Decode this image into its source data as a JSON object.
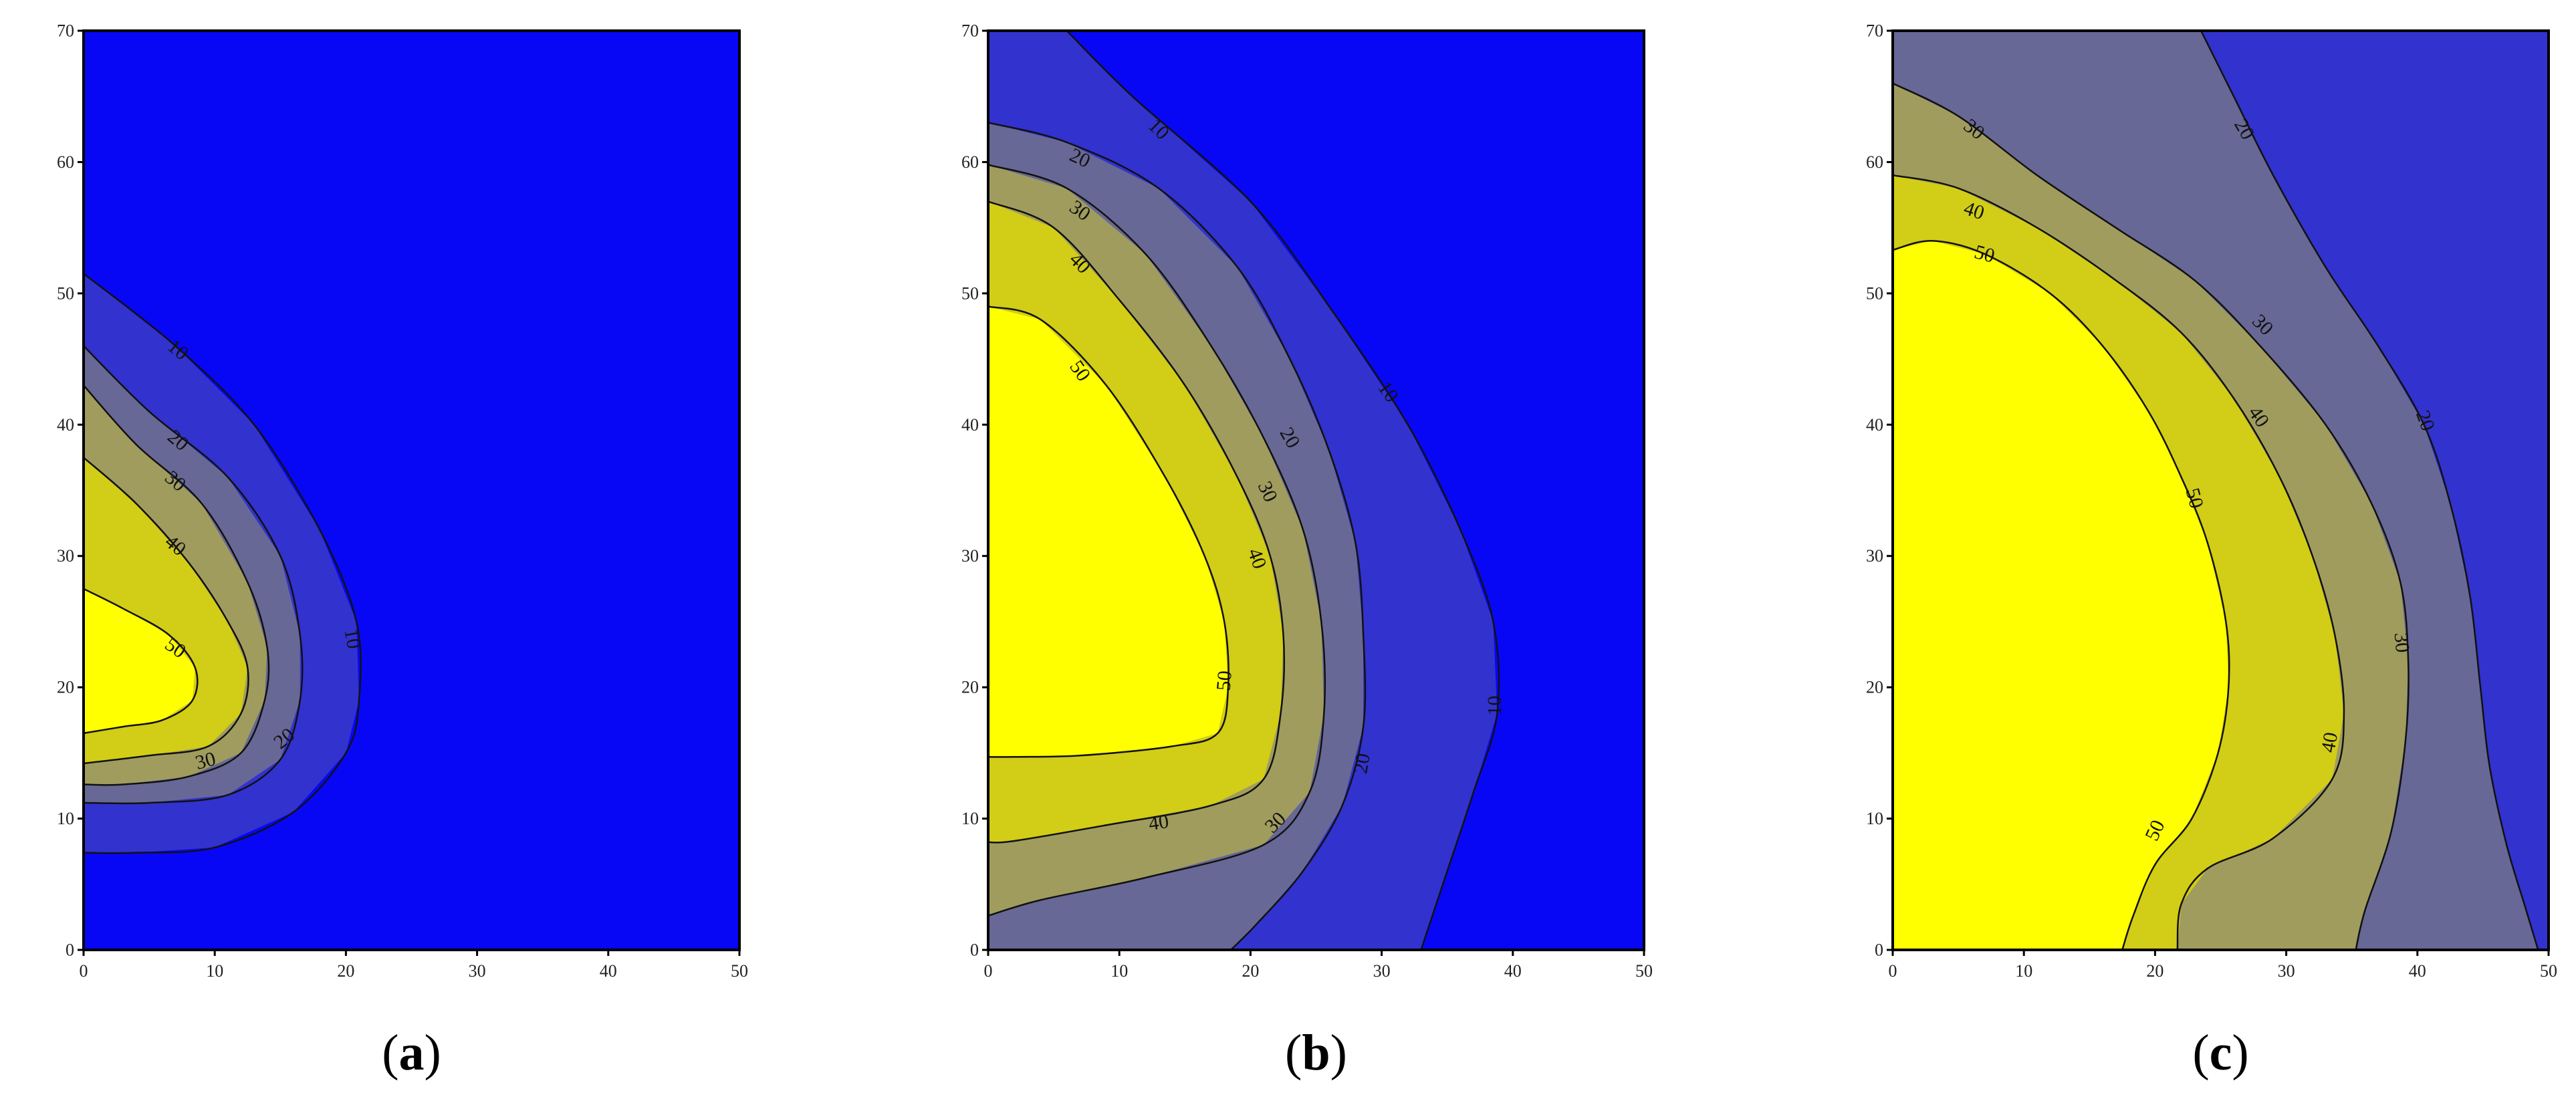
{
  "colors": {
    "level_0_10": "#0707f6",
    "level_10_20": "#3232cf",
    "level_20_30": "#686896",
    "level_30_40": "#a09c5e",
    "level_40_50": "#d2cd16",
    "level_50_plus": "#ffff00"
  },
  "chart_data": [
    {
      "type": "contour",
      "panel_label": "a",
      "xlim": [
        0,
        50
      ],
      "ylim": [
        0,
        70
      ],
      "x_ticks": [
        "0",
        "10",
        "20",
        "30",
        "40",
        "50"
      ],
      "y_ticks": [
        "0",
        "10",
        "20",
        "30",
        "40",
        "50",
        "60",
        "70"
      ],
      "levels": [
        10,
        20,
        30,
        40,
        50
      ],
      "contours": [
        {
          "level": 10,
          "points": [
            [
              0,
              51.5
            ],
            [
              7,
              46
            ],
            [
              13,
              40
            ],
            [
              18,
              32
            ],
            [
              20.8,
              25
            ],
            [
              21,
              19
            ],
            [
              20,
              15
            ],
            [
              16,
              10.5
            ],
            [
              10,
              7.8
            ],
            [
              4,
              7.4
            ],
            [
              0,
              7.4
            ]
          ]
        },
        {
          "level": 20,
          "points": [
            [
              0,
              46
            ],
            [
              5,
              41
            ],
            [
              11,
              36
            ],
            [
              15,
              30
            ],
            [
              16.5,
              24
            ],
            [
              16.5,
              19
            ],
            [
              15,
              14.5
            ],
            [
              11,
              11.8
            ],
            [
              5,
              11.2
            ],
            [
              0,
              11.2
            ]
          ]
        },
        {
          "level": 30,
          "points": [
            [
              0,
              43
            ],
            [
              4,
              38.5
            ],
            [
              9,
              34
            ],
            [
              12.5,
              28
            ],
            [
              14,
              23
            ],
            [
              13.8,
              19
            ],
            [
              12,
              15
            ],
            [
              8,
              13.2
            ],
            [
              3,
              12.6
            ],
            [
              0,
              12.6
            ]
          ]
        },
        {
          "level": 40,
          "points": [
            [
              0,
              37.5
            ],
            [
              4,
              34
            ],
            [
              8,
              29.5
            ],
            [
              11,
              25
            ],
            [
              12.5,
              21.5
            ],
            [
              12,
              18
            ],
            [
              9.5,
              15.5
            ],
            [
              5,
              14.8
            ],
            [
              0,
              14.2
            ]
          ]
        },
        {
          "level": 50,
          "points": [
            [
              0,
              27.5
            ],
            [
              3,
              26
            ],
            [
              6.5,
              24
            ],
            [
              8.5,
              21.5
            ],
            [
              8.3,
              19
            ],
            [
              6,
              17.5
            ],
            [
              3,
              17
            ],
            [
              0,
              16.5
            ]
          ]
        }
      ],
      "contour_labels": [
        {
          "text": "10",
          "x": 7.2,
          "y": 45.7,
          "angle": 40
        },
        {
          "text": "20",
          "x": 7.2,
          "y": 38.8,
          "angle": 40
        },
        {
          "text": "30",
          "x": 7.0,
          "y": 35.7,
          "angle": 40
        },
        {
          "text": "40",
          "x": 7.0,
          "y": 30.8,
          "angle": 40
        },
        {
          "text": "50",
          "x": 7.0,
          "y": 23.0,
          "angle": 35
        },
        {
          "text": "10",
          "x": 20.5,
          "y": 23.7,
          "angle": 80
        },
        {
          "text": "20",
          "x": 15.3,
          "y": 16.1,
          "angle": -40
        },
        {
          "text": "30",
          "x": 9.3,
          "y": 14.4,
          "angle": -15
        }
      ]
    },
    {
      "type": "contour",
      "panel_label": "b",
      "xlim": [
        0,
        50
      ],
      "ylim": [
        0,
        70
      ],
      "x_ticks": [
        "0",
        "10",
        "20",
        "30",
        "40",
        "50"
      ],
      "y_ticks": [
        "0",
        "10",
        "20",
        "30",
        "40",
        "50",
        "60",
        "70"
      ],
      "levels": [
        10,
        20,
        30,
        40,
        50
      ],
      "contours": [
        {
          "level": 10,
          "points": [
            [
              6,
              70
            ],
            [
              11,
              65
            ],
            [
              20,
              57
            ],
            [
              26,
              49
            ],
            [
              32,
              40
            ],
            [
              36,
              32
            ],
            [
              38.5,
              25
            ],
            [
              38.8,
              18
            ],
            [
              37,
              12
            ],
            [
              35,
              6
            ],
            [
              33,
              0
            ]
          ]
        },
        {
          "level": 20,
          "points": [
            [
              0,
              63
            ],
            [
              6,
              61.5
            ],
            [
              13,
              58
            ],
            [
              19,
              52
            ],
            [
              23,
              45
            ],
            [
              26,
              38
            ],
            [
              28,
              31
            ],
            [
              28.6,
              24
            ],
            [
              28.6,
              17
            ],
            [
              27,
              11
            ],
            [
              24,
              6
            ],
            [
              20.5,
              2
            ],
            [
              18.5,
              0
            ]
          ]
        },
        {
          "level": 30,
          "points": [
            [
              0,
              59.8
            ],
            [
              6,
              58
            ],
            [
              12,
              53
            ],
            [
              17,
              46
            ],
            [
              21,
              39
            ],
            [
              24,
              32
            ],
            [
              25.4,
              25
            ],
            [
              25.6,
              18
            ],
            [
              24.5,
              12
            ],
            [
              21,
              8
            ],
            [
              12,
              5.5
            ],
            [
              4,
              3.8
            ],
            [
              0,
              2.6
            ]
          ]
        },
        {
          "level": 40,
          "points": [
            [
              0,
              57
            ],
            [
              5,
              55
            ],
            [
              10,
              49.5
            ],
            [
              15,
              43
            ],
            [
              19,
              36
            ],
            [
              21.5,
              30
            ],
            [
              22.5,
              24
            ],
            [
              22.3,
              18
            ],
            [
              21,
              13
            ],
            [
              17,
              11
            ],
            [
              9,
              9.5
            ],
            [
              2,
              8.3
            ],
            [
              0,
              8.2
            ]
          ]
        },
        {
          "level": 50,
          "points": [
            [
              0,
              49
            ],
            [
              4,
              48
            ],
            [
              9,
              43
            ],
            [
              13.5,
              36
            ],
            [
              16.5,
              30
            ],
            [
              18,
              25
            ],
            [
              18.3,
              20
            ],
            [
              17.5,
              16.5
            ],
            [
              14,
              15.5
            ],
            [
              7,
              14.8
            ],
            [
              2,
              14.7
            ],
            [
              0,
              14.7
            ]
          ]
        }
      ],
      "contour_labels": [
        {
          "text": "10",
          "x": 13.0,
          "y": 62.5,
          "angle": 45
        },
        {
          "text": "20",
          "x": 7.0,
          "y": 60.3,
          "angle": 25
        },
        {
          "text": "30",
          "x": 7.0,
          "y": 56.3,
          "angle": 35
        },
        {
          "text": "40",
          "x": 7.0,
          "y": 52.3,
          "angle": 45
        },
        {
          "text": "50",
          "x": 7.0,
          "y": 44.1,
          "angle": 55
        },
        {
          "text": "10",
          "x": 30.5,
          "y": 42.5,
          "angle": 55
        },
        {
          "text": "20",
          "x": 23.0,
          "y": 39.0,
          "angle": 60
        },
        {
          "text": "30",
          "x": 21.3,
          "y": 34.9,
          "angle": 65
        },
        {
          "text": "40",
          "x": 20.5,
          "y": 29.8,
          "angle": 70
        },
        {
          "text": "50",
          "x": 18.0,
          "y": 20.5,
          "angle": -85
        },
        {
          "text": "10",
          "x": 38.6,
          "y": 18.6,
          "angle": -90
        },
        {
          "text": "20",
          "x": 28.5,
          "y": 14.2,
          "angle": -80
        },
        {
          "text": "30",
          "x": 21.9,
          "y": 9.7,
          "angle": -45
        },
        {
          "text": "40",
          "x": 13.0,
          "y": 9.7,
          "angle": -8
        }
      ]
    },
    {
      "type": "contour",
      "panel_label": "c",
      "xlim": [
        0,
        50
      ],
      "ylim": [
        0,
        70
      ],
      "x_ticks": [
        "0",
        "10",
        "20",
        "30",
        "40",
        "50"
      ],
      "y_ticks": [
        "0",
        "10",
        "20",
        "30",
        "40",
        "50",
        "60",
        "70"
      ],
      "levels": [
        20,
        30,
        40,
        50
      ],
      "contours": [
        {
          "level": 20,
          "points": [
            [
              23.5,
              70
            ],
            [
              26,
              65
            ],
            [
              29,
              59
            ],
            [
              33,
              52
            ],
            [
              37,
              46
            ],
            [
              40.5,
              40
            ],
            [
              42.5,
              34
            ],
            [
              44,
              27
            ],
            [
              44.8,
              20
            ],
            [
              45.5,
              14
            ],
            [
              46.8,
              8
            ],
            [
              48.3,
              3
            ],
            [
              49.2,
              0
            ]
          ]
        },
        {
          "level": 30,
          "points": [
            [
              0,
              66
            ],
            [
              5,
              63.5
            ],
            [
              11,
              59
            ],
            [
              17,
              55
            ],
            [
              23,
              51
            ],
            [
              28,
              46
            ],
            [
              33,
              40
            ],
            [
              36.5,
              34
            ],
            [
              38.7,
              28
            ],
            [
              39.3,
              22
            ],
            [
              39.1,
              16
            ],
            [
              38,
              9
            ],
            [
              36,
              3
            ],
            [
              35.3,
              0
            ]
          ]
        },
        {
          "level": 40,
          "points": [
            [
              0,
              59
            ],
            [
              5,
              58
            ],
            [
              11,
              55
            ],
            [
              17,
              51
            ],
            [
              22,
              47
            ],
            [
              26,
              42
            ],
            [
              29.5,
              36
            ],
            [
              32,
              30
            ],
            [
              33.7,
              24
            ],
            [
              34.4,
              18
            ],
            [
              33.5,
              13
            ],
            [
              29,
              8.5
            ],
            [
              24,
              6.2
            ],
            [
              22,
              3.5
            ],
            [
              21.7,
              0
            ]
          ]
        },
        {
          "level": 50,
          "points": [
            [
              0,
              53.3
            ],
            [
              3,
              54
            ],
            [
              7,
              53
            ],
            [
              12,
              50
            ],
            [
              16,
              46
            ],
            [
              19.5,
              41
            ],
            [
              22,
              36
            ],
            [
              24,
              31
            ],
            [
              25.4,
              25
            ],
            [
              25.6,
              20
            ],
            [
              24.8,
              15
            ],
            [
              22.8,
              10
            ],
            [
              20,
              6.5
            ],
            [
              18.3,
              2.5
            ],
            [
              17.5,
              0
            ]
          ]
        }
      ],
      "contour_labels": [
        {
          "text": "30",
          "x": 6.2,
          "y": 62.5,
          "angle": 38
        },
        {
          "text": "40",
          "x": 6.2,
          "y": 56.3,
          "angle": 18
        },
        {
          "text": "50",
          "x": 7.0,
          "y": 53.0,
          "angle": 15
        },
        {
          "text": "20",
          "x": 26.8,
          "y": 62.5,
          "angle": 60
        },
        {
          "text": "30",
          "x": 28.2,
          "y": 47.6,
          "angle": 45
        },
        {
          "text": "40",
          "x": 27.9,
          "y": 40.6,
          "angle": 55
        },
        {
          "text": "20",
          "x": 40.6,
          "y": 40.3,
          "angle": 70
        },
        {
          "text": "50",
          "x": 23.0,
          "y": 34.4,
          "angle": 75
        },
        {
          "text": "30",
          "x": 38.8,
          "y": 23.4,
          "angle": 85
        },
        {
          "text": "40",
          "x": 33.3,
          "y": 15.8,
          "angle": -80
        },
        {
          "text": "50",
          "x": 20.0,
          "y": 9.1,
          "angle": -65
        }
      ]
    }
  ]
}
